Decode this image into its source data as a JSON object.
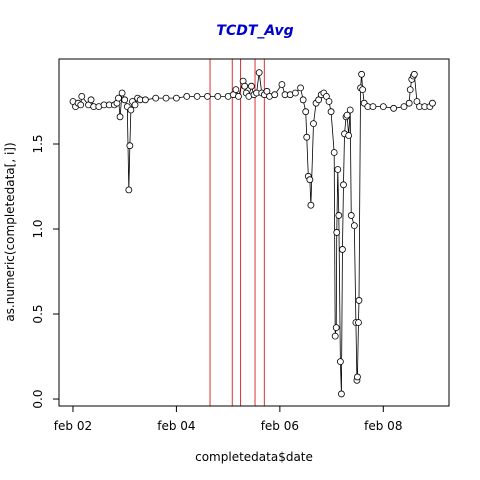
{
  "chart_data": {
    "type": "line",
    "title": "TCDT_Avg",
    "title_color": "#0000cc",
    "x_label": "completedata$date",
    "y_label": "as.numeric(completedata[, i])",
    "xlim": [
      1.73,
      9.27
    ],
    "ylim": [
      -0.041,
      2.0
    ],
    "xticks": [
      {
        "value": 2,
        "label": "feb 02"
      },
      {
        "value": 4,
        "label": "feb 04"
      },
      {
        "value": 6,
        "label": "feb 06"
      },
      {
        "value": 8,
        "label": "feb 08"
      }
    ],
    "yticks": [
      {
        "value": 0,
        "label": "0.0"
      },
      {
        "value": 0.5,
        "label": "0.5"
      },
      {
        "value": 1,
        "label": "1.0"
      },
      {
        "value": 1.5,
        "label": "1.5"
      }
    ],
    "color": "#000000",
    "vlines": [
      4.65,
      5.08,
      5.24,
      5.52,
      5.7
    ],
    "vline_color": "#e03030",
    "x": [
      2.0,
      2.05,
      2.1,
      2.15,
      2.17,
      2.3,
      2.35,
      2.4,
      2.5,
      2.6,
      2.7,
      2.8,
      2.85,
      2.88,
      2.91,
      2.95,
      3.0,
      3.05,
      3.08,
      3.1,
      3.12,
      3.15,
      3.2,
      3.25,
      3.3,
      3.4,
      3.6,
      3.8,
      4.0,
      4.2,
      4.4,
      4.6,
      4.8,
      5.0,
      5.1,
      5.15,
      5.2,
      5.29,
      5.32,
      5.35,
      5.4,
      5.45,
      5.5,
      5.55,
      5.6,
      5.65,
      5.7,
      5.75,
      5.8,
      5.9,
      6.04,
      6.1,
      6.2,
      6.3,
      6.4,
      6.45,
      6.5,
      6.52,
      6.55,
      6.58,
      6.6,
      6.65,
      6.7,
      6.75,
      6.8,
      6.85,
      6.9,
      6.95,
      6.99,
      7.05,
      7.07,
      7.09,
      7.1,
      7.12,
      7.14,
      7.17,
      7.19,
      7.21,
      7.23,
      7.25,
      7.28,
      7.3,
      7.33,
      7.36,
      7.38,
      7.44,
      7.47,
      7.49,
      7.5,
      7.52,
      7.53,
      7.56,
      7.58,
      7.6,
      7.63,
      7.7,
      7.8,
      8.0,
      8.2,
      8.4,
      8.5,
      8.52,
      8.55,
      8.58,
      8.6,
      8.65,
      8.7,
      8.8,
      8.9,
      8.95
    ],
    "values": [
      1.75,
      1.72,
      1.74,
      1.73,
      1.78,
      1.73,
      1.76,
      1.72,
      1.72,
      1.73,
      1.73,
      1.73,
      1.74,
      1.77,
      1.66,
      1.8,
      1.76,
      1.72,
      1.23,
      1.49,
      1.7,
      1.75,
      1.73,
      1.77,
      1.76,
      1.76,
      1.77,
      1.77,
      1.77,
      1.78,
      1.78,
      1.78,
      1.78,
      1.78,
      1.79,
      1.82,
      1.78,
      1.87,
      1.84,
      1.8,
      1.78,
      1.84,
      1.79,
      1.8,
      1.92,
      1.8,
      1.79,
      1.81,
      1.78,
      1.79,
      1.85,
      1.79,
      1.79,
      1.8,
      1.83,
      1.76,
      1.69,
      1.54,
      1.31,
      1.29,
      1.14,
      1.62,
      1.74,
      1.76,
      1.79,
      1.8,
      1.78,
      1.75,
      1.69,
      1.45,
      0.37,
      0.42,
      0.98,
      1.35,
      1.08,
      0.22,
      0.03,
      0.88,
      1.26,
      1.56,
      1.66,
      1.67,
      1.55,
      1.7,
      1.08,
      1.02,
      0.45,
      0.11,
      0.13,
      0.45,
      0.58,
      1.83,
      1.91,
      1.82,
      1.74,
      1.72,
      1.72,
      1.72,
      1.71,
      1.72,
      1.74,
      1.82,
      1.88,
      1.9,
      1.91,
      1.75,
      1.72,
      1.72,
      1.72,
      1.74
    ]
  }
}
